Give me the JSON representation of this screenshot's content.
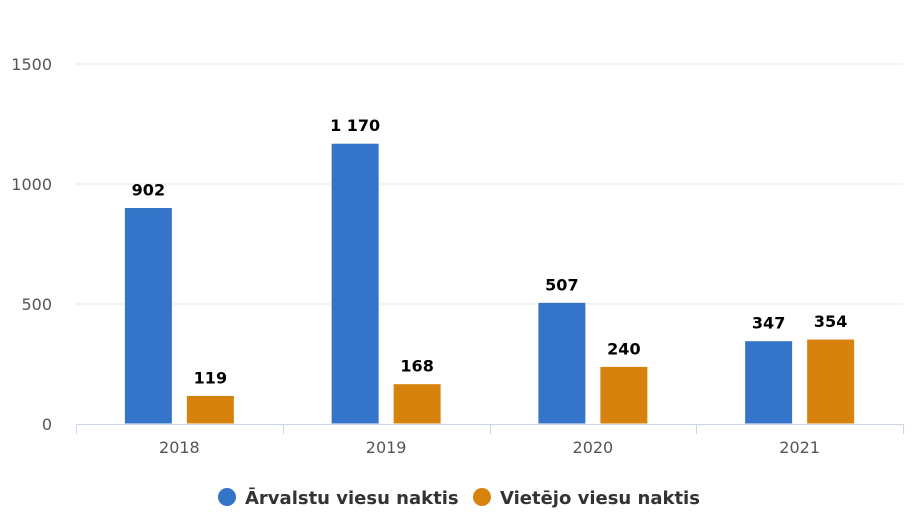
{
  "chart_data": {
    "type": "bar",
    "title": "",
    "xlabel": "",
    "ylabel": "",
    "categories": [
      "2018",
      "2019",
      "2020",
      "2021"
    ],
    "series": [
      {
        "name": "Ārvalstu viesu naktis",
        "color": "#3575c9",
        "values": [
          902,
          1170,
          507,
          347
        ],
        "labels": [
          "902",
          "1 170",
          "507",
          "347"
        ]
      },
      {
        "name": "Vietējo viesu naktis",
        "color": "#d8820e",
        "values": [
          119,
          168,
          240,
          354
        ],
        "labels": [
          "119",
          "168",
          "240",
          "354"
        ]
      }
    ],
    "ylim": [
      0,
      1500
    ],
    "yticks": [
      0,
      500,
      1000,
      1500
    ],
    "ytick_labels": [
      "0",
      "500",
      "1000",
      "1500"
    ],
    "grid": true,
    "legend_position": "bottom-center"
  }
}
